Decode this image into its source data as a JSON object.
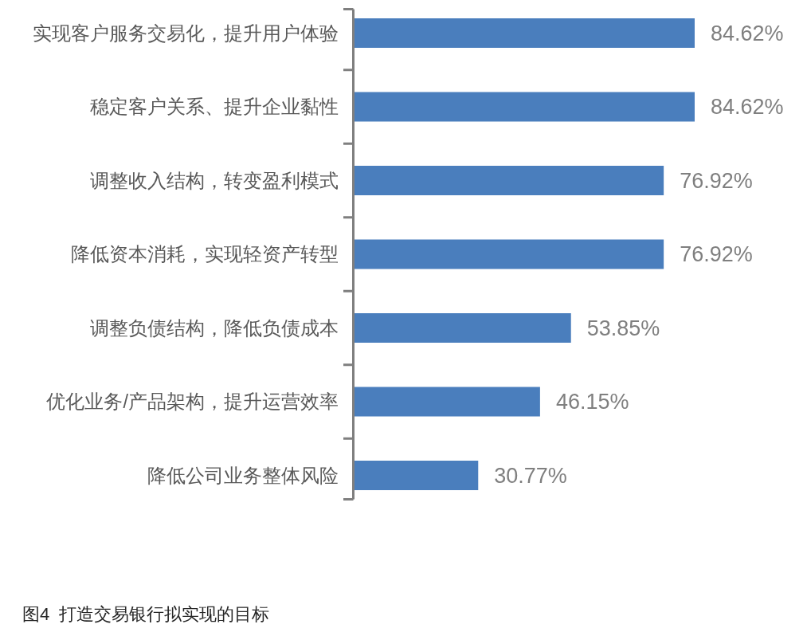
{
  "chart_data": {
    "type": "bar",
    "orientation": "horizontal",
    "title": "图4  打造交易银行拟实现的目标",
    "categories": [
      "实现客户服务交易化，提升用户体验",
      "稳定客户关系、提升企业黏性",
      "调整收入结构，转变盈利模式",
      "降低资本消耗，实现轻资产转型",
      "调整负债结构，降低负债成本",
      "优化业务/产品架构，提升运营效率",
      "降低公司业务整体风险"
    ],
    "values": [
      84.62,
      84.62,
      76.92,
      76.92,
      53.85,
      46.15,
      30.77
    ],
    "value_labels": [
      "84.62%",
      "84.62%",
      "76.92%",
      "76.92%",
      "53.85%",
      "46.15%",
      "30.77%"
    ],
    "color": "#4a7ebd",
    "tick_labels": "y"
  }
}
